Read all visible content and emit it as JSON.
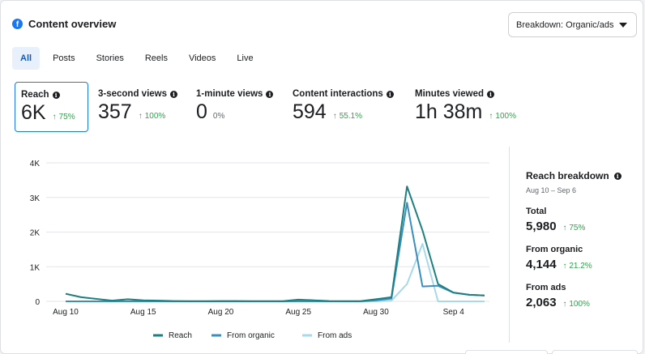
{
  "header": {
    "title": "Content overview",
    "logo_icon": "facebook-icon",
    "dropdown_label": "Breakdown: Organic/ads"
  },
  "tabs": [
    {
      "label": "All",
      "active": true
    },
    {
      "label": "Posts"
    },
    {
      "label": "Stories"
    },
    {
      "label": "Reels"
    },
    {
      "label": "Videos"
    },
    {
      "label": "Live"
    }
  ],
  "metrics": [
    {
      "label": "Reach",
      "value": "6K",
      "change": "75%",
      "up": true,
      "selected": true
    },
    {
      "label": "3-second views",
      "value": "357",
      "change": "100%",
      "up": true
    },
    {
      "label": "1-minute views",
      "value": "0",
      "change": "0%",
      "up": false
    },
    {
      "label": "Content interactions",
      "value": "594",
      "change": "55.1%",
      "up": true
    },
    {
      "label": "Minutes viewed",
      "value": "1h 38m",
      "change": "100%",
      "up": true
    }
  ],
  "chart_data": {
    "type": "line",
    "ylim": [
      0,
      4000
    ],
    "yticks": [
      0,
      1000,
      2000,
      3000,
      4000
    ],
    "ytick_labels": [
      "0",
      "1K",
      "2K",
      "3K",
      "4K"
    ],
    "xtick_labels": [
      "Aug 10",
      "Aug 15",
      "Aug 20",
      "Aug 25",
      "Aug 30",
      "Sep 4"
    ],
    "xtick_index": [
      0,
      5,
      10,
      15,
      20,
      25
    ],
    "x": [
      "Aug 10",
      "Aug 11",
      "Aug 12",
      "Aug 13",
      "Aug 14",
      "Aug 15",
      "Aug 16",
      "Aug 17",
      "Aug 18",
      "Aug 19",
      "Aug 20",
      "Aug 21",
      "Aug 22",
      "Aug 23",
      "Aug 24",
      "Aug 25",
      "Aug 26",
      "Aug 27",
      "Aug 28",
      "Aug 29",
      "Aug 30",
      "Aug 31",
      "Sep 1",
      "Sep 2",
      "Sep 3",
      "Sep 4",
      "Sep 5",
      "Sep 6"
    ],
    "series": [
      {
        "name": "Reach",
        "color": "#1d7f80",
        "values": [
          220,
          120,
          70,
          20,
          60,
          30,
          20,
          10,
          5,
          5,
          10,
          10,
          5,
          5,
          5,
          50,
          30,
          10,
          5,
          5,
          60,
          120,
          3320,
          2050,
          500,
          250,
          190,
          170
        ]
      },
      {
        "name": "From organic",
        "color": "#3a8fbf",
        "values": [
          0,
          0,
          0,
          0,
          0,
          0,
          0,
          0,
          0,
          0,
          0,
          0,
          0,
          0,
          0,
          0,
          0,
          0,
          0,
          0,
          30,
          80,
          2850,
          430,
          450,
          250,
          190,
          170
        ]
      },
      {
        "name": "From ads",
        "color": "#a7d9eb",
        "values": [
          0,
          0,
          0,
          0,
          0,
          0,
          0,
          0,
          0,
          0,
          0,
          0,
          0,
          0,
          0,
          0,
          0,
          0,
          0,
          0,
          0,
          20,
          500,
          1660,
          0,
          0,
          0,
          0
        ]
      }
    ]
  },
  "breakdown": {
    "title": "Reach breakdown",
    "dates": "Aug 10 – Sep 6",
    "items": [
      {
        "label": "Total",
        "value": "5,980",
        "change": "75%"
      },
      {
        "label": "From organic",
        "value": "4,144",
        "change": "21.2%"
      },
      {
        "label": "From ads",
        "value": "2,063",
        "change": "100%"
      }
    ]
  }
}
